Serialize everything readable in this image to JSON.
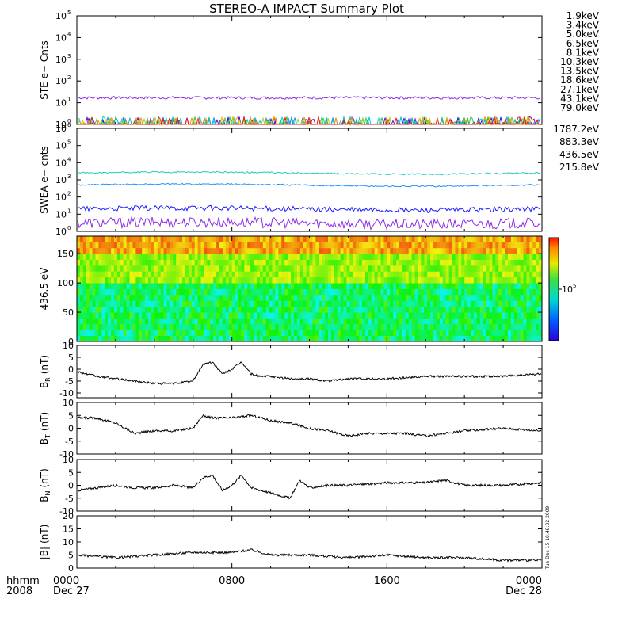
{
  "title": "STEREO-A IMPACT Summary Plot",
  "timestamp_note": "Tue Dec 15 10:48:02 2009",
  "footer": {
    "hhmm_label": "hhmm",
    "year_label": "2008",
    "start_date": "Dec 27",
    "end_date": "Dec 28"
  },
  "x_ticks": [
    "0000",
    "0800",
    "1600",
    "0000"
  ],
  "chart_data": [
    {
      "id": "ste",
      "type": "line",
      "ylabel": "STE e− Cnts",
      "yscale": "log",
      "ylim": [
        1,
        100000
      ],
      "y_ticks": [
        "10",
        "10",
        "10",
        "10",
        "10",
        "10"
      ],
      "y_tick_exps": [
        "0",
        "1",
        "2",
        "3",
        "4",
        "5"
      ],
      "series": [
        {
          "name": "1.9keV",
          "color": "#8a2be2",
          "level": 17
        },
        {
          "name": "3.4keV",
          "color": "#6a0dad",
          "level": 1
        },
        {
          "name": "5.0keV",
          "color": "#1a1aff",
          "level": 1
        },
        {
          "name": "6.5keV",
          "color": "#1e90ff",
          "level": 1
        },
        {
          "name": "8.1keV",
          "color": "#00ced1",
          "level": 1
        },
        {
          "name": "10.3keV",
          "color": "#20b2aa",
          "level": 1
        },
        {
          "name": "13.5keV",
          "color": "#2ecc40",
          "level": 1
        },
        {
          "name": "18.6keV",
          "color": "#9acd32",
          "level": 1
        },
        {
          "name": "27.1keV",
          "color": "#e6c200",
          "level": 1
        },
        {
          "name": "43.1keV",
          "color": "#ff8c00",
          "level": 1
        },
        {
          "name": "79.0keV",
          "color": "#e31a1c",
          "level": 1
        }
      ]
    },
    {
      "id": "swea",
      "type": "line",
      "ylabel": "SWEA e− cnts",
      "yscale": "log",
      "ylim": [
        1,
        1000000
      ],
      "y_ticks": [
        "10",
        "10",
        "10",
        "10",
        "10",
        "10",
        "10"
      ],
      "y_tick_exps": [
        "0",
        "1",
        "2",
        "3",
        "4",
        "5",
        "6"
      ],
      "series": [
        {
          "name": "1787.2eV",
          "color": "#8a2be2",
          "level": 3
        },
        {
          "name": "883.3eV",
          "color": "#1a1aff",
          "level": 20
        },
        {
          "name": "436.5eV",
          "color": "#1e90ff",
          "level": 500
        },
        {
          "name": "215.8eV",
          "color": "#20c8c0",
          "level": 2500
        }
      ]
    },
    {
      "id": "pad",
      "type": "heatmap",
      "ylabel": "436.5 eV",
      "ylim": [
        0,
        180
      ],
      "y_ticks": [
        "0",
        "50",
        "100",
        "150"
      ],
      "colorbar_label": "10",
      "colorbar_exp": "5"
    },
    {
      "id": "br",
      "type": "line",
      "ylabel_main": "B",
      "ylabel_sub": "R",
      "ylabel_unit": "(nT)",
      "ylim": [
        -12,
        10
      ],
      "y_ticks": [
        "-10",
        "-5",
        "0",
        "5",
        "10"
      ],
      "x_hours": [
        0,
        1,
        2,
        3,
        4,
        5,
        6,
        6.5,
        7,
        7.5,
        8,
        8.5,
        9,
        9.5,
        10,
        11,
        12,
        13,
        14,
        16,
        18,
        20,
        22,
        24
      ],
      "values": [
        -1,
        -3,
        -4,
        -5,
        -6,
        -6,
        -5,
        2,
        3,
        -2,
        0,
        3,
        -2,
        -3,
        -3,
        -4,
        -4,
        -5,
        -4,
        -4,
        -3,
        -3,
        -3,
        -2
      ]
    },
    {
      "id": "bt",
      "type": "line",
      "ylabel_main": "B",
      "ylabel_sub": "T",
      "ylabel_unit": "(nT)",
      "ylim": [
        -10,
        10
      ],
      "y_ticks": [
        "-10",
        "-5",
        "0",
        "5",
        "10"
      ],
      "x_hours": [
        0,
        1,
        2,
        3,
        4,
        5,
        6,
        6.5,
        7,
        8,
        9,
        10,
        11,
        12,
        13,
        14,
        15,
        16,
        17,
        18,
        20,
        22,
        24
      ],
      "values": [
        4,
        4,
        2,
        -2,
        -1,
        -1,
        0,
        5,
        4,
        4,
        5,
        3,
        2,
        0,
        -1,
        -3,
        -2,
        -2,
        -2,
        -3,
        -1,
        0,
        -1
      ]
    },
    {
      "id": "bn",
      "type": "line",
      "ylabel_main": "B",
      "ylabel_sub": "N",
      "ylabel_unit": "(nT)",
      "ylim": [
        -10,
        10
      ],
      "y_ticks": [
        "-10",
        "-5",
        "0",
        "5",
        "10"
      ],
      "x_hours": [
        0,
        1,
        2,
        3,
        4,
        5,
        6,
        6.5,
        7,
        7.5,
        8,
        8.5,
        9,
        10,
        11,
        11.5,
        12,
        13,
        14,
        16,
        18,
        19,
        20,
        22,
        24
      ],
      "values": [
        -2,
        -1,
        0,
        -1,
        -1,
        0,
        -1,
        3,
        4,
        -2,
        0,
        4,
        -1,
        -3,
        -5,
        2,
        -1,
        0,
        0,
        1,
        1,
        2,
        0,
        0,
        1
      ]
    },
    {
      "id": "bmag",
      "type": "line",
      "ylabel_main": "|B|",
      "ylabel_unit": "(nT)",
      "ylim": [
        0,
        20
      ],
      "y_ticks": [
        "0",
        "5",
        "10",
        "15",
        "20"
      ],
      "x_hours": [
        0,
        2,
        4,
        6,
        8,
        9,
        10,
        12,
        14,
        16,
        18,
        20,
        22,
        24
      ],
      "values": [
        5,
        4,
        5,
        6,
        6,
        7,
        5,
        5,
        4,
        5,
        4,
        4,
        3,
        3
      ]
    }
  ]
}
